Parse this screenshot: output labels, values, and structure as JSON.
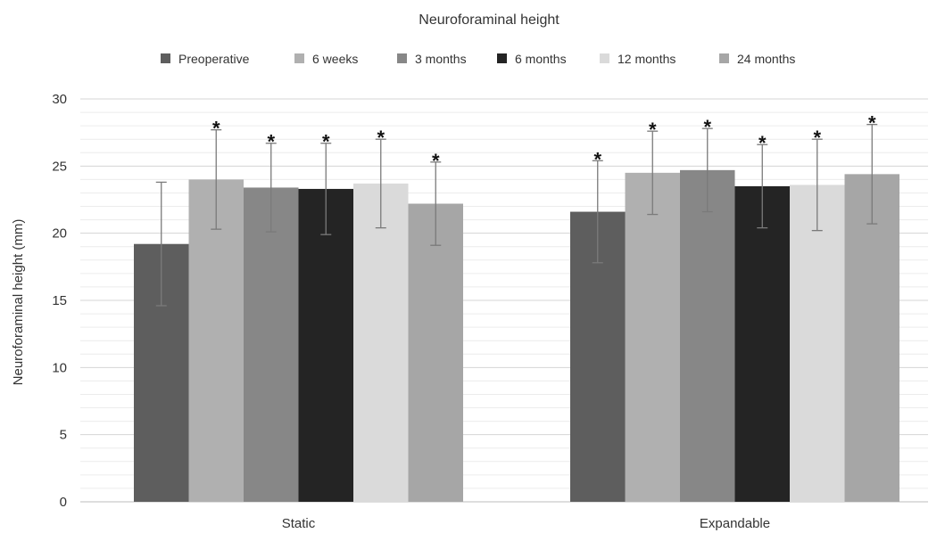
{
  "chart_data": {
    "type": "bar",
    "title": "Neuroforaminal height",
    "ylabel": "Neuroforaminal height (mm)",
    "xlabel": "",
    "ylim": [
      0,
      30
    ],
    "yticks": [
      "0",
      "5",
      "10",
      "15",
      "20",
      "25",
      "30"
    ],
    "yticks_values": [
      0,
      5,
      10,
      15,
      20,
      25,
      30
    ],
    "minor_grid_step": 1,
    "grid": true,
    "legend_position": "top",
    "categories": [
      "Static",
      "Expandable"
    ],
    "significance_marker": "*",
    "series": [
      {
        "name": "Preoperative",
        "color": "#5e5e5e",
        "values": [
          19.2,
          21.6
        ],
        "error": [
          [
            14.6,
            23.8
          ],
          [
            17.8,
            25.4
          ]
        ],
        "significant": [
          false,
          true
        ]
      },
      {
        "name": "6 weeks",
        "color": "#b0b0b0",
        "values": [
          24.0,
          24.5
        ],
        "error": [
          [
            20.3,
            27.7
          ],
          [
            21.4,
            27.6
          ]
        ],
        "significant": [
          true,
          true
        ]
      },
      {
        "name": "3 months",
        "color": "#878787",
        "values": [
          23.4,
          24.7
        ],
        "error": [
          [
            20.1,
            26.7
          ],
          [
            21.6,
            27.8
          ]
        ],
        "significant": [
          true,
          true
        ]
      },
      {
        "name": "6 months",
        "color": "#242424",
        "values": [
          23.3,
          23.5
        ],
        "error": [
          [
            19.9,
            26.7
          ],
          [
            20.4,
            26.6
          ]
        ],
        "significant": [
          true,
          true
        ]
      },
      {
        "name": "12 months",
        "color": "#dadada",
        "values": [
          23.7,
          23.6
        ],
        "error": [
          [
            20.4,
            27.0
          ],
          [
            20.2,
            27.0
          ]
        ],
        "significant": [
          true,
          true
        ]
      },
      {
        "name": "24 months",
        "color": "#a6a6a6",
        "values": [
          22.2,
          24.4
        ],
        "error": [
          [
            19.1,
            25.3
          ],
          [
            20.7,
            28.1
          ]
        ],
        "significant": [
          true,
          true
        ]
      }
    ]
  }
}
